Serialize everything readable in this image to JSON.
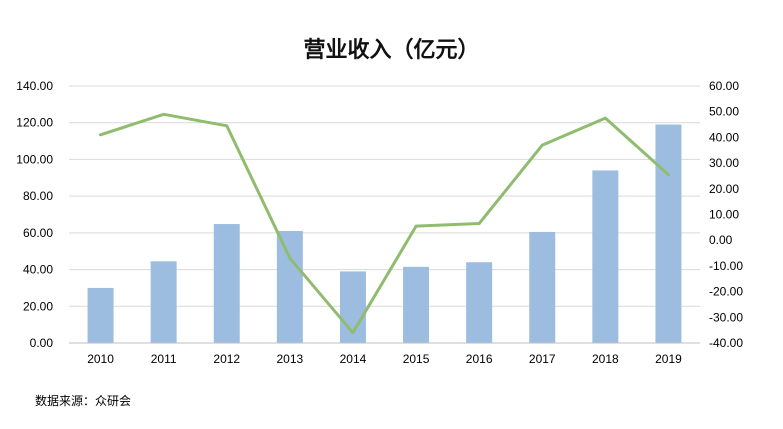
{
  "chart_data": {
    "type": "bar+line",
    "title": "营业收入（亿元）",
    "categories": [
      "2010",
      "2011",
      "2012",
      "2013",
      "2014",
      "2015",
      "2016",
      "2017",
      "2018",
      "2019"
    ],
    "series": [
      {
        "type": "bar",
        "axis": "left",
        "color": "#9dbde0",
        "values": [
          30.0,
          44.5,
          64.8,
          61.0,
          39.0,
          41.5,
          44.0,
          60.5,
          94.0,
          119.0
        ]
      },
      {
        "type": "line",
        "axis": "right",
        "color": "#8fbc6e",
        "values": [
          41.0,
          49.0,
          44.5,
          -7.0,
          -36.0,
          5.5,
          6.5,
          37.0,
          47.5,
          25.5
        ]
      }
    ],
    "y_left": {
      "min": 0,
      "max": 140,
      "step": 20,
      "decimals": 2
    },
    "y_right": {
      "min": -40,
      "max": 60,
      "step": 10,
      "decimals": 2
    },
    "grid": true,
    "gridline_color": "#d9d9d9",
    "legend": "none",
    "source": "数据来源：众研会"
  }
}
